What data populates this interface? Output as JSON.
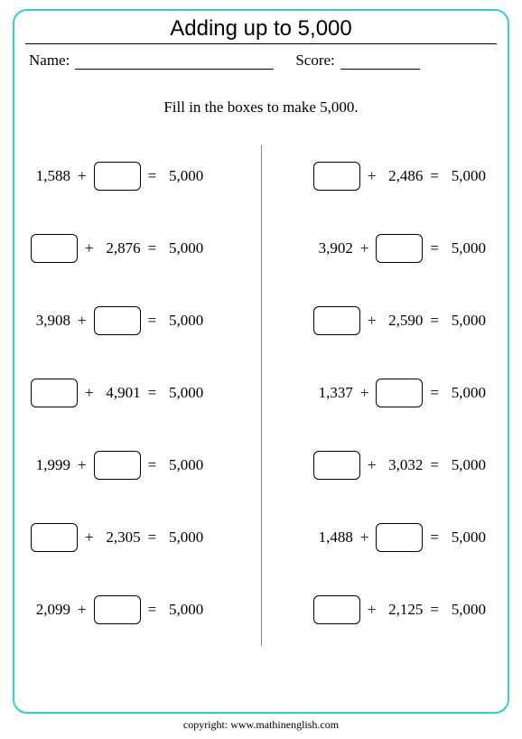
{
  "title": "Adding up to 5,000",
  "name_label": "Name:",
  "score_label": "Score:",
  "instruction": "Fill in the boxes to make 5,000.",
  "target": "5,000",
  "plus": "+",
  "equals": "=",
  "left_col": [
    {
      "known": "1,588",
      "box_position": "right"
    },
    {
      "known": "2,876",
      "box_position": "left"
    },
    {
      "known": "3,908",
      "box_position": "right"
    },
    {
      "known": "4,901",
      "box_position": "left"
    },
    {
      "known": "1,999",
      "box_position": "right"
    },
    {
      "known": "2,305",
      "box_position": "left"
    },
    {
      "known": "2,099",
      "box_position": "right"
    }
  ],
  "right_col": [
    {
      "known": "2,486",
      "box_position": "left"
    },
    {
      "known": "3,902",
      "box_position": "right"
    },
    {
      "known": "2,590",
      "box_position": "left"
    },
    {
      "known": "1,337",
      "box_position": "right"
    },
    {
      "known": "3,032",
      "box_position": "left"
    },
    {
      "known": "1,488",
      "box_position": "right"
    },
    {
      "known": "2,125",
      "box_position": "left"
    }
  ],
  "copyright": "copyright:   www.mathinenglish.com",
  "style": {
    "border_color": "#31d0c9",
    "title_font": "Comic Sans MS",
    "body_font": "Times New Roman",
    "font_size_body": 17,
    "font_size_title": 24
  }
}
